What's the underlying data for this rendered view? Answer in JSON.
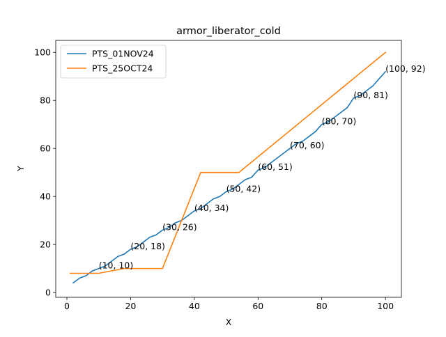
{
  "chart_data": {
    "type": "line",
    "title": "armor_liberator_cold",
    "xlabel": "X",
    "ylabel": "Y",
    "xlim": [
      -3.5,
      105
    ],
    "ylim": [
      -2,
      105
    ],
    "xticks": [
      0,
      20,
      40,
      60,
      80,
      100
    ],
    "yticks": [
      0,
      20,
      40,
      60,
      80,
      100
    ],
    "grid": false,
    "legend_position": "top-left",
    "series": [
      {
        "name": "PTS_01NOV24",
        "color": "#1f77b4",
        "x": [
          2,
          4,
          6,
          8,
          10,
          12,
          14,
          16,
          18,
          20,
          22,
          24,
          26,
          28,
          30,
          32,
          34,
          36,
          38,
          40,
          42,
          44,
          46,
          48,
          50,
          52,
          54,
          56,
          58,
          60,
          62,
          64,
          66,
          68,
          70,
          72,
          74,
          76,
          78,
          80,
          82,
          84,
          86,
          88,
          90,
          92,
          94,
          96,
          98,
          100
        ],
        "y": [
          4,
          6,
          7,
          9,
          10,
          11,
          13,
          15,
          16,
          18,
          19,
          21,
          23,
          24,
          26,
          27,
          29,
          30,
          32,
          34,
          35,
          37,
          39,
          40,
          42,
          43,
          45,
          47,
          48,
          51,
          52,
          54,
          56,
          58,
          60,
          62,
          63,
          65,
          67,
          70,
          71,
          73,
          75,
          77,
          81,
          82,
          84,
          86,
          89,
          92
        ]
      },
      {
        "name": "PTS_25OCT24",
        "color": "#ff7f0e",
        "x": [
          1,
          10,
          18,
          30,
          42,
          54,
          100
        ],
        "y": [
          8,
          8,
          10,
          10,
          50,
          50,
          100
        ]
      }
    ],
    "annotations": [
      {
        "x": 10,
        "y": 10,
        "text": "(10, 10)"
      },
      {
        "x": 20,
        "y": 18,
        "text": "(20, 18)"
      },
      {
        "x": 30,
        "y": 26,
        "text": "(30, 26)"
      },
      {
        "x": 40,
        "y": 34,
        "text": "(40, 34)"
      },
      {
        "x": 50,
        "y": 42,
        "text": "(50, 42)"
      },
      {
        "x": 60,
        "y": 51,
        "text": "(60, 51)"
      },
      {
        "x": 70,
        "y": 60,
        "text": "(70, 60)"
      },
      {
        "x": 80,
        "y": 70,
        "text": "(80, 70)"
      },
      {
        "x": 90,
        "y": 81,
        "text": "(90, 81)"
      },
      {
        "x": 100,
        "y": 92,
        "text": "(100, 92)"
      }
    ]
  }
}
